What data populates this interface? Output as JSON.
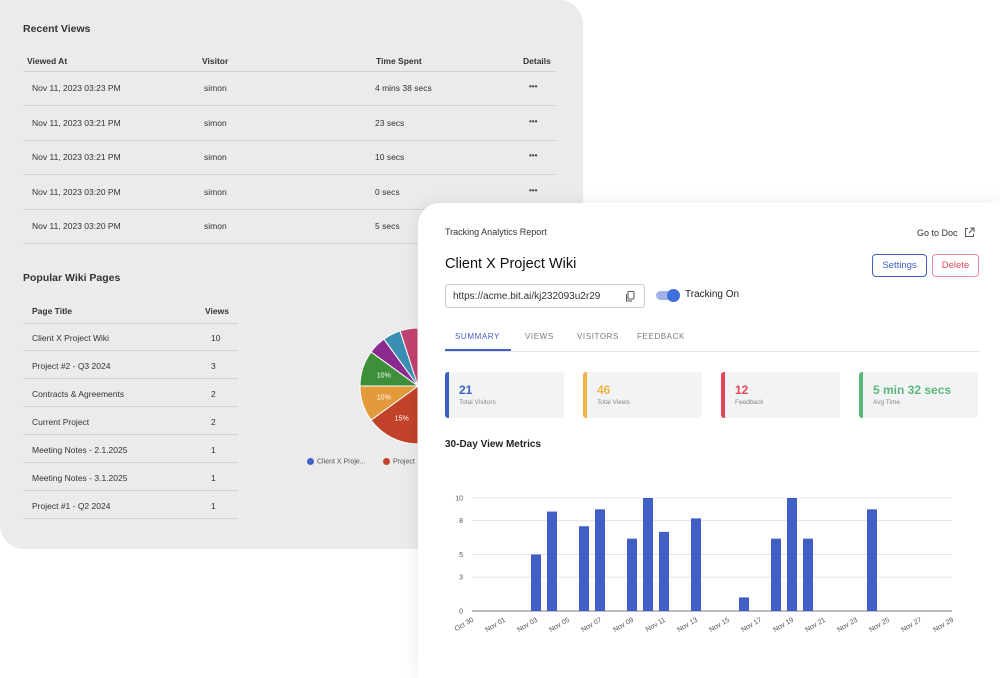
{
  "recent_views": {
    "title": "Recent Views",
    "columns": [
      "Viewed At",
      "Visitor",
      "Time Spent",
      "Details"
    ],
    "rows": [
      {
        "viewed_at": "Nov 11, 2023 03:23 PM",
        "visitor": "simon",
        "time_spent": "4 mins 38 secs",
        "details": "•••"
      },
      {
        "viewed_at": "Nov 11, 2023 03:21 PM",
        "visitor": "simon",
        "time_spent": "23 secs",
        "details": "•••"
      },
      {
        "viewed_at": "Nov 11, 2023 03:21 PM",
        "visitor": "simon",
        "time_spent": "10 secs",
        "details": "•••"
      },
      {
        "viewed_at": "Nov 11, 2023 03:20 PM",
        "visitor": "simon",
        "time_spent": "0 secs",
        "details": "•••"
      },
      {
        "viewed_at": "Nov 11, 2023 03:20 PM",
        "visitor": "simon",
        "time_spent": "5 secs",
        "details": "•••"
      }
    ]
  },
  "popular_pages": {
    "title": "Popular Wiki Pages",
    "columns": [
      "Page Title",
      "Views"
    ],
    "rows": [
      {
        "title": "Client X Project Wiki",
        "views": "10"
      },
      {
        "title": "Project #2 - Q3 2024",
        "views": "3"
      },
      {
        "title": "Contracts & Agreements",
        "views": "2"
      },
      {
        "title": "Current Project",
        "views": "2"
      },
      {
        "title": "Meeting Notes - 2.1.2025",
        "views": "1"
      },
      {
        "title": "Meeting Notes - 3.1.2025",
        "views": "1"
      },
      {
        "title": "Project #1 - Q2 2024",
        "views": "1"
      }
    ],
    "pie": {
      "slices": [
        {
          "value": 50,
          "color": "#3f5fc4",
          "label": ""
        },
        {
          "value": 15,
          "color": "#c2432a",
          "label": "15%"
        },
        {
          "value": 10,
          "color": "#e39a3a",
          "label": "10%"
        },
        {
          "value": 10,
          "color": "#3e8f3a",
          "label": "10%"
        },
        {
          "value": 5,
          "color": "#8a2a8f",
          "label": ""
        },
        {
          "value": 5,
          "color": "#3a8fb3",
          "label": ""
        },
        {
          "value": 5,
          "color": "#c2436f",
          "label": ""
        }
      ],
      "legend": [
        {
          "label": "Client X Proje...",
          "color": "#3f5fc4"
        },
        {
          "label": "Project",
          "color": "#c2432a"
        }
      ]
    }
  },
  "report": {
    "header_label": "Tracking Analytics Report",
    "go_to_doc": "Go to Doc",
    "doc_title": "Client X Project Wiki",
    "url": "https://acme.bit.ai/kj232093u2r29",
    "tracking_label": "Tracking On",
    "settings_label": "Settings",
    "delete_label": "Delete",
    "tabs": [
      "SUMMARY",
      "VIEWS",
      "VISITORS",
      "FEEDBACK"
    ],
    "active_tab": 0,
    "stats": [
      {
        "value": "21",
        "label": "Total Visitors",
        "color": "#3f5fc4"
      },
      {
        "value": "46",
        "label": "Total Views",
        "color": "#f0b444"
      },
      {
        "value": "12",
        "label": "Feedback",
        "color": "#e0485a"
      },
      {
        "value": "5 min 32 secs",
        "label": "Avg Time",
        "color": "#5cb77a"
      }
    ],
    "metrics_title": "30-Day View Metrics"
  },
  "chart_data": {
    "type": "bar",
    "categories": [
      "Oct 30",
      "Oct 31",
      "Nov 01",
      "Nov 02",
      "Nov 03",
      "Nov 04",
      "Nov 05",
      "Nov 06",
      "Nov 07",
      "Nov 08",
      "Nov 09",
      "Nov 10",
      "Nov 11",
      "Nov 12",
      "Nov 13",
      "Nov 14",
      "Nov 15",
      "Nov 16",
      "Nov 17",
      "Nov 18",
      "Nov 19",
      "Nov 20",
      "Nov 21",
      "Nov 22",
      "Nov 23",
      "Nov 24",
      "Nov 25",
      "Nov 26",
      "Nov 27",
      "Nov 28",
      "Nov 29"
    ],
    "tick_labels": [
      "Oct 30",
      "Nov 01",
      "Nov 03",
      "Nov 05",
      "Nov 07",
      "Nov 09",
      "Nov 11",
      "Nov 13",
      "Nov 15",
      "Nov 17",
      "Nov 19",
      "Nov 21",
      "Nov 23",
      "Nov 25",
      "Nov 27",
      "Nov 29"
    ],
    "values": [
      0,
      0,
      0,
      0,
      5,
      8.8,
      0,
      7.5,
      9,
      0,
      6.4,
      10,
      7,
      0,
      8.2,
      0,
      0,
      1.2,
      0,
      6.4,
      10,
      6.4,
      0,
      0,
      0,
      9,
      0,
      0,
      0,
      0,
      0
    ],
    "yticks": [
      0,
      3,
      5,
      8,
      10
    ],
    "ylim": [
      0,
      10
    ],
    "color": "#3f5fc4",
    "grid": true
  }
}
